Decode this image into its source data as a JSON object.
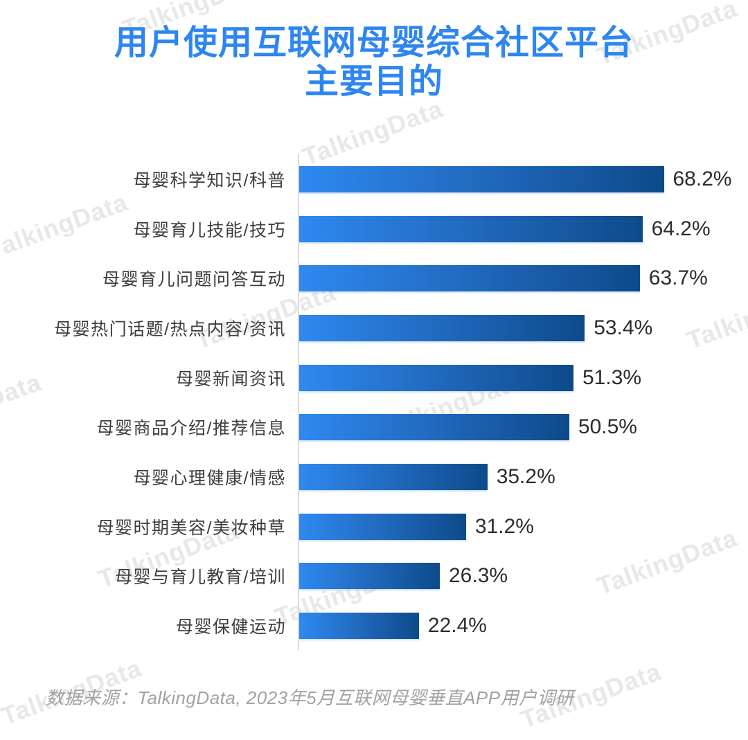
{
  "title": {
    "line1": "用户使用互联网母婴综合社区平台",
    "line2": "主要目的"
  },
  "source_note": "数据来源：TalkingData, 2023年5月互联网母婴垂直APP用户调研",
  "watermark": {
    "text": "TalkingData",
    "color": "#e8e8e8"
  },
  "colors": {
    "title": "#2E86F0",
    "bar_gradient_start": "#2F89F0",
    "bar_gradient_end": "#0D4A8A",
    "category_label": "#3d3d3d",
    "value_label": "#2d2d2d",
    "axis_line": "#dcdcdc",
    "source_text": "#a2a2a2"
  },
  "chart_data": {
    "type": "bar",
    "orientation": "horizontal",
    "title": "用户使用互联网母婴综合社区平台主要目的",
    "xlabel": "",
    "ylabel": "",
    "xlim": [
      0,
      70
    ],
    "grid": false,
    "legend": false,
    "value_suffix": "%",
    "categories": [
      "母婴科学知识/科普",
      "母婴育儿技能/技巧",
      "母婴育儿问题问答互动",
      "母婴热门话题/热点内容/资讯",
      "母婴新闻资讯",
      "母婴商品介绍/推荐信息",
      "母婴心理健康/情感",
      "母婴时期美容/美妆种草",
      "母婴与育儿教育/培训",
      "母婴保健运动"
    ],
    "values": [
      68.2,
      64.2,
      63.7,
      53.4,
      51.3,
      50.5,
      35.2,
      31.2,
      26.3,
      22.4
    ],
    "value_labels": [
      "68.2%",
      "64.2%",
      "63.7%",
      "53.4%",
      "51.3%",
      "50.5%",
      "35.2%",
      "31.2%",
      "26.3%",
      "22.4%"
    ]
  }
}
